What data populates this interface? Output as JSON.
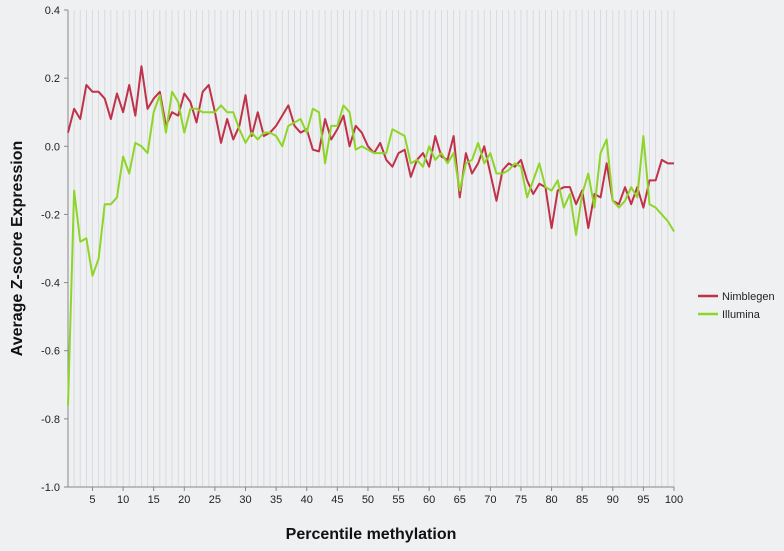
{
  "chart_data": {
    "type": "line",
    "title": "",
    "xlabel": "Percentile methylation",
    "ylabel": "Average  Z-score Expression",
    "xlim": [
      1,
      100
    ],
    "ylim": [
      -1.0,
      0.4
    ],
    "x_ticks": [
      5,
      10,
      15,
      20,
      25,
      30,
      35,
      40,
      45,
      50,
      55,
      60,
      65,
      70,
      75,
      80,
      85,
      90,
      95,
      100
    ],
    "y_ticks": [
      0.4,
      0.2,
      0.0,
      -0.2,
      -0.4,
      -0.6,
      -0.8,
      -1.0
    ],
    "y_tick_labels": [
      "0.4",
      "0.2",
      "0.0",
      "-0.2",
      "-0.4",
      "-0.6",
      "-0.8",
      "-1.0"
    ],
    "grid": "vertical",
    "legend_position": "right",
    "x": [
      1,
      2,
      3,
      4,
      5,
      6,
      7,
      8,
      9,
      10,
      11,
      12,
      13,
      14,
      15,
      16,
      17,
      18,
      19,
      20,
      21,
      22,
      23,
      24,
      25,
      26,
      27,
      28,
      29,
      30,
      31,
      32,
      33,
      34,
      35,
      36,
      37,
      38,
      39,
      40,
      41,
      42,
      43,
      44,
      45,
      46,
      47,
      48,
      49,
      50,
      51,
      52,
      53,
      54,
      55,
      56,
      57,
      58,
      59,
      60,
      61,
      62,
      63,
      64,
      65,
      66,
      67,
      68,
      69,
      70,
      71,
      72,
      73,
      74,
      75,
      76,
      77,
      78,
      79,
      80,
      81,
      82,
      83,
      84,
      85,
      86,
      87,
      88,
      89,
      90,
      91,
      92,
      93,
      94,
      95,
      96,
      97,
      98,
      99,
      100
    ],
    "series": [
      {
        "name": "Nimblegen",
        "color": "#c0314a",
        "values": [
          0.04,
          0.11,
          0.08,
          0.18,
          0.16,
          0.16,
          0.14,
          0.08,
          0.155,
          0.1,
          0.18,
          0.09,
          0.235,
          0.11,
          0.14,
          0.16,
          0.06,
          0.1,
          0.09,
          0.155,
          0.13,
          0.07,
          0.16,
          0.18,
          0.1,
          0.01,
          0.08,
          0.02,
          0.06,
          0.15,
          0.03,
          0.1,
          0.03,
          0.04,
          0.06,
          0.09,
          0.12,
          0.06,
          0.04,
          0.05,
          -0.01,
          -0.015,
          0.08,
          0.02,
          0.05,
          0.09,
          0.0,
          0.06,
          0.04,
          0.0,
          -0.02,
          0.01,
          -0.04,
          -0.06,
          -0.02,
          -0.01,
          -0.09,
          -0.04,
          -0.02,
          -0.06,
          0.03,
          -0.03,
          -0.04,
          0.03,
          -0.15,
          -0.02,
          -0.08,
          -0.05,
          0.0,
          -0.08,
          -0.16,
          -0.07,
          -0.05,
          -0.06,
          -0.04,
          -0.1,
          -0.14,
          -0.11,
          -0.12,
          -0.24,
          -0.13,
          -0.12,
          -0.12,
          -0.17,
          -0.13,
          -0.24,
          -0.14,
          -0.15,
          -0.05,
          -0.16,
          -0.17,
          -0.12,
          -0.17,
          -0.12,
          -0.18,
          -0.1,
          -0.1,
          -0.04,
          -0.05,
          -0.05
        ]
      },
      {
        "name": "Illumina",
        "color": "#8ed52a",
        "values": [
          -0.76,
          -0.13,
          -0.28,
          -0.27,
          -0.38,
          -0.33,
          -0.17,
          -0.17,
          -0.15,
          -0.03,
          -0.08,
          0.01,
          0.0,
          -0.02,
          0.1,
          0.15,
          0.04,
          0.16,
          0.13,
          0.04,
          0.11,
          0.11,
          0.1,
          0.1,
          0.1,
          0.12,
          0.1,
          0.1,
          0.05,
          0.01,
          0.04,
          0.02,
          0.04,
          0.04,
          0.03,
          0.0,
          0.06,
          0.07,
          0.08,
          0.04,
          0.11,
          0.1,
          -0.05,
          0.06,
          0.06,
          0.12,
          0.1,
          -0.01,
          0.0,
          -0.01,
          -0.02,
          -0.02,
          -0.02,
          0.05,
          0.04,
          0.03,
          -0.05,
          -0.04,
          -0.06,
          0.0,
          -0.04,
          -0.02,
          -0.05,
          -0.02,
          -0.13,
          -0.05,
          -0.04,
          0.01,
          -0.05,
          -0.02,
          -0.08,
          -0.08,
          -0.07,
          -0.05,
          -0.06,
          -0.15,
          -0.1,
          -0.05,
          -0.12,
          -0.13,
          -0.1,
          -0.18,
          -0.14,
          -0.26,
          -0.14,
          -0.08,
          -0.18,
          -0.02,
          0.02,
          -0.16,
          -0.18,
          -0.16,
          -0.12,
          -0.15,
          0.03,
          -0.17,
          -0.18,
          -0.2,
          -0.22,
          -0.25
        ]
      }
    ]
  }
}
